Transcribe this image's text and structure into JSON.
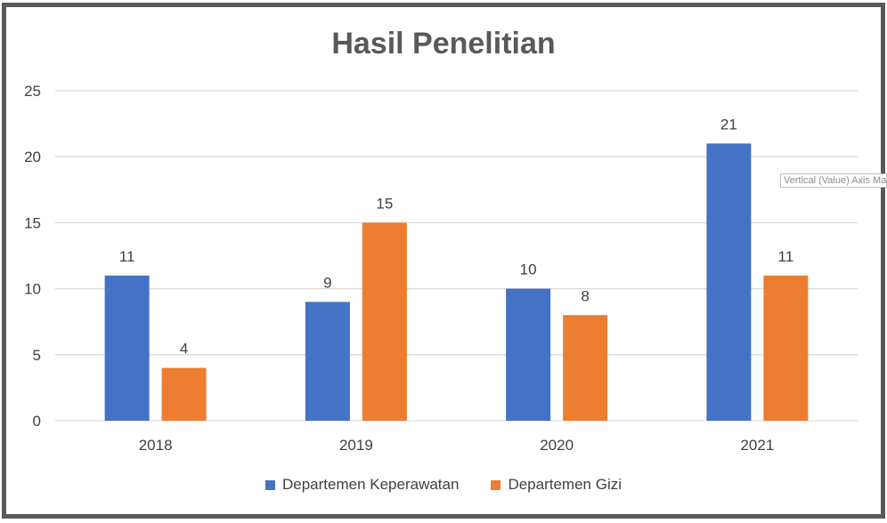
{
  "chart_data": {
    "type": "bar",
    "title": "Hasil Penelitian",
    "categories": [
      "2018",
      "2019",
      "2020",
      "2021"
    ],
    "series": [
      {
        "name": "Departemen Keperawatan",
        "color": "#4472C4",
        "values": [
          11,
          9,
          10,
          21
        ]
      },
      {
        "name": "Departemen Gizi",
        "color": "#ED7D31",
        "values": [
          4,
          15,
          8,
          11
        ]
      }
    ],
    "ylim": [
      0,
      25
    ],
    "yticks": [
      0,
      5,
      10,
      15,
      20,
      25
    ],
    "grid": true,
    "legend": "bottom",
    "data_labels": true
  },
  "tooltip": {
    "text": "Vertical (Value) Axis Major Gridlines"
  },
  "colors": {
    "frame": "#595959",
    "gridline": "#d9d9d9",
    "text": "#404040"
  }
}
